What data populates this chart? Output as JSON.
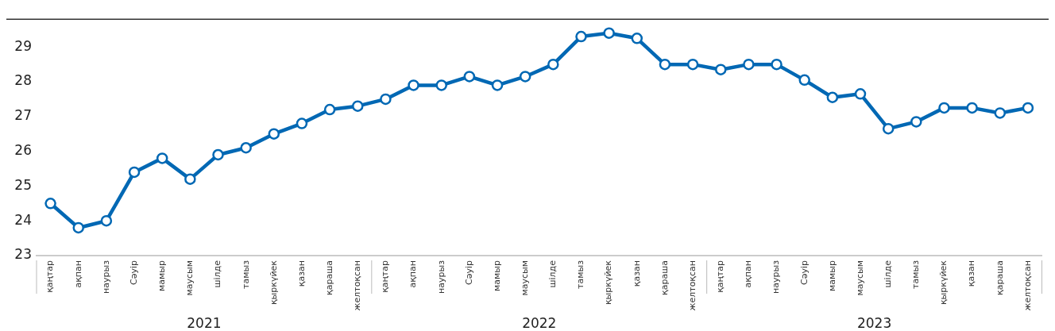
{
  "chart_data": {
    "type": "line",
    "categories": [
      "қаңтар",
      "ақпан",
      "наурыз",
      "Сәуір",
      "мамыр",
      "маусым",
      "шілде",
      "тамыз",
      "қыркүйек",
      "қазан",
      "қараша",
      "желтоқсан",
      "қаңтар",
      "ақпан",
      "наурыз",
      "Сәуір",
      "мамыр",
      "маусым",
      "шілде",
      "тамыз",
      "қыркүйек",
      "қазан",
      "қараша",
      "желтоқсан",
      "қаңтар",
      "ақпан",
      "наурыз",
      "Сәуір",
      "мамыр",
      "маусым",
      "шілде",
      "тамыз",
      "қыркүйек",
      "қазан",
      "қараша",
      "желтоқсан"
    ],
    "series": [
      {
        "color": "#0068b4",
        "values": [
          24.5,
          23.8,
          24.0,
          25.4,
          25.8,
          25.2,
          25.9,
          26.1,
          26.5,
          26.8,
          27.2,
          27.3,
          27.5,
          27.9,
          27.9,
          28.15,
          27.9,
          28.15,
          28.5,
          29.3,
          29.4,
          29.25,
          28.5,
          28.5,
          28.35,
          28.5,
          28.5,
          28.05,
          27.55,
          27.65,
          26.65,
          26.85,
          27.25,
          27.25,
          27.1,
          27.25
        ]
      }
    ],
    "annotations": [
      "2021",
      "2022",
      "2023"
    ],
    "ylim": [
      23,
      29.8
    ],
    "yticks": [
      23,
      24,
      25,
      26,
      27,
      28,
      29
    ],
    "grid": false,
    "legend": false,
    "marker": "circle",
    "line_style": "solid"
  }
}
